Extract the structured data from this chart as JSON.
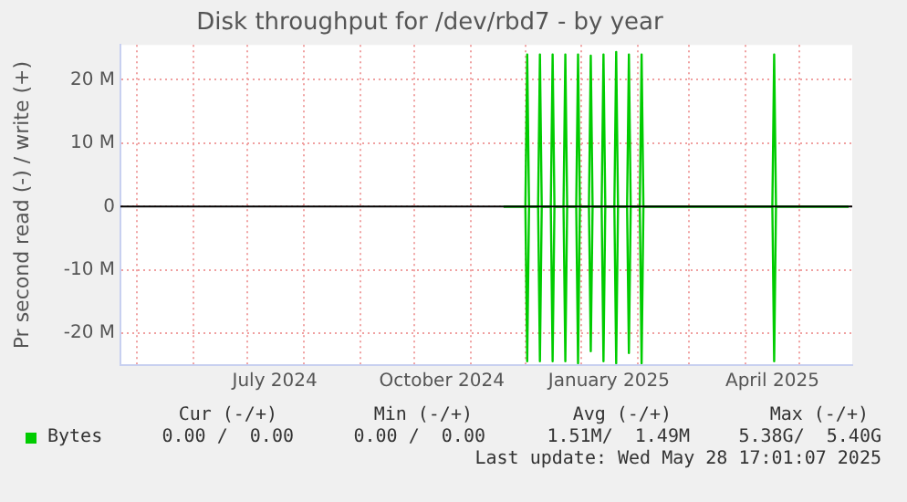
{
  "chart_data": {
    "type": "line",
    "title": "Disk throughput for /dev/rbd7 - by year",
    "ylabel": "Pr second read (-) / write (+)",
    "xlim": [
      "2024-04-22",
      "2025-05-30"
    ],
    "ylim": [
      -25,
      25.5
    ],
    "yticks": [
      {
        "value": -20,
        "label": "-20 M"
      },
      {
        "value": -10,
        "label": "-10 M"
      },
      0,
      {
        "value": 10,
        "label": "10 M"
      },
      {
        "value": 20,
        "label": "20 M"
      }
    ],
    "xticks": [
      {
        "value": "2024-05-01",
        "label": null
      },
      {
        "value": "2024-06-01",
        "label": null
      },
      {
        "value": "2024-07-01",
        "label": null
      },
      {
        "value": "2024-07-16",
        "label": "July 2024"
      },
      {
        "value": "2024-08-01",
        "label": null
      },
      {
        "value": "2024-09-01",
        "label": null
      },
      {
        "value": "2024-10-01",
        "label": null
      },
      {
        "value": "2024-10-16",
        "label": "October 2024"
      },
      {
        "value": "2024-11-01",
        "label": null
      },
      {
        "value": "2024-12-01",
        "label": null
      },
      {
        "value": "2025-01-01",
        "label": null
      },
      {
        "value": "2025-01-16",
        "label": "January 2025"
      },
      {
        "value": "2025-02-01",
        "label": null
      },
      {
        "value": "2025-03-01",
        "label": null
      },
      {
        "value": "2025-04-01",
        "label": null
      },
      {
        "value": "2025-04-16",
        "label": "April 2025"
      },
      {
        "value": "2025-05-01",
        "label": null
      }
    ],
    "grid": true,
    "legend": "bottom left",
    "marker": "none",
    "line_style": "solid",
    "ref_lines": [
      {
        "axis": "y",
        "value": 0,
        "color": "#000000"
      }
    ],
    "series": [
      {
        "name": "Bytes",
        "color": "#00cc00",
        "x": [
          "2024-11-19",
          "2024-12-01",
          "2024-12-02",
          "2024-12-03",
          "2024-12-08",
          "2024-12-09",
          "2024-12-10",
          "2024-12-15",
          "2024-12-16",
          "2024-12-17",
          "2024-12-22",
          "2024-12-23",
          "2024-12-24",
          "2024-12-29",
          "2024-12-30",
          "2024-12-31",
          "2025-01-05",
          "2025-01-06",
          "2025-01-07",
          "2025-01-12",
          "2025-01-13",
          "2025-01-14",
          "2025-01-19",
          "2025-01-20",
          "2025-01-21",
          "2025-01-26",
          "2025-01-27",
          "2025-01-28",
          "2025-02-02",
          "2025-02-03",
          "2025-02-04",
          "2025-04-16",
          "2025-04-17",
          "2025-04-18",
          "2025-05-28"
        ],
        "values": [
          0,
          0,
          24,
          0,
          0,
          24,
          0,
          0,
          24,
          0,
          0,
          24,
          0,
          0,
          24,
          0,
          0,
          23.8,
          0,
          0,
          24,
          0,
          0,
          24.4,
          0,
          0,
          24,
          0,
          0,
          24,
          0,
          0,
          24,
          0,
          0
        ]
      },
      {
        "color": "#00cc00",
        "x": [
          "2024-11-19",
          "2024-12-01",
          "2024-12-02",
          "2024-12-03",
          "2024-12-08",
          "2024-12-09",
          "2024-12-10",
          "2024-12-15",
          "2024-12-16",
          "2024-12-17",
          "2024-12-22",
          "2024-12-23",
          "2024-12-24",
          "2024-12-29",
          "2024-12-30",
          "2024-12-31",
          "2025-01-05",
          "2025-01-06",
          "2025-01-07",
          "2025-01-12",
          "2025-01-13",
          "2025-01-14",
          "2025-01-19",
          "2025-01-20",
          "2025-01-21",
          "2025-01-26",
          "2025-01-27",
          "2025-01-28",
          "2025-02-02",
          "2025-02-03",
          "2025-02-04",
          "2025-04-16",
          "2025-04-17",
          "2025-04-18",
          "2025-05-28"
        ],
        "values": [
          0,
          0,
          -24.4,
          0,
          0,
          -24.4,
          0,
          0,
          -24.4,
          0,
          0,
          -24.4,
          0,
          0,
          -24.7,
          0,
          0,
          -22.8,
          0,
          0,
          -24.4,
          0,
          0,
          -24.7,
          0,
          0,
          -23.1,
          0,
          0,
          -24.7,
          0,
          0,
          -24.4,
          0,
          0
        ]
      }
    ],
    "annotations": [
      "Cur (-/+)",
      "Min (-/+)",
      "Avg (-/+)",
      "Max (-/+)",
      "0.00 /  0.00",
      "0.00 /  0.00",
      "1.51M/  1.49M",
      "5.38G/  5.40G",
      "Last update: Wed May 28 17:01:07 2025"
    ]
  }
}
